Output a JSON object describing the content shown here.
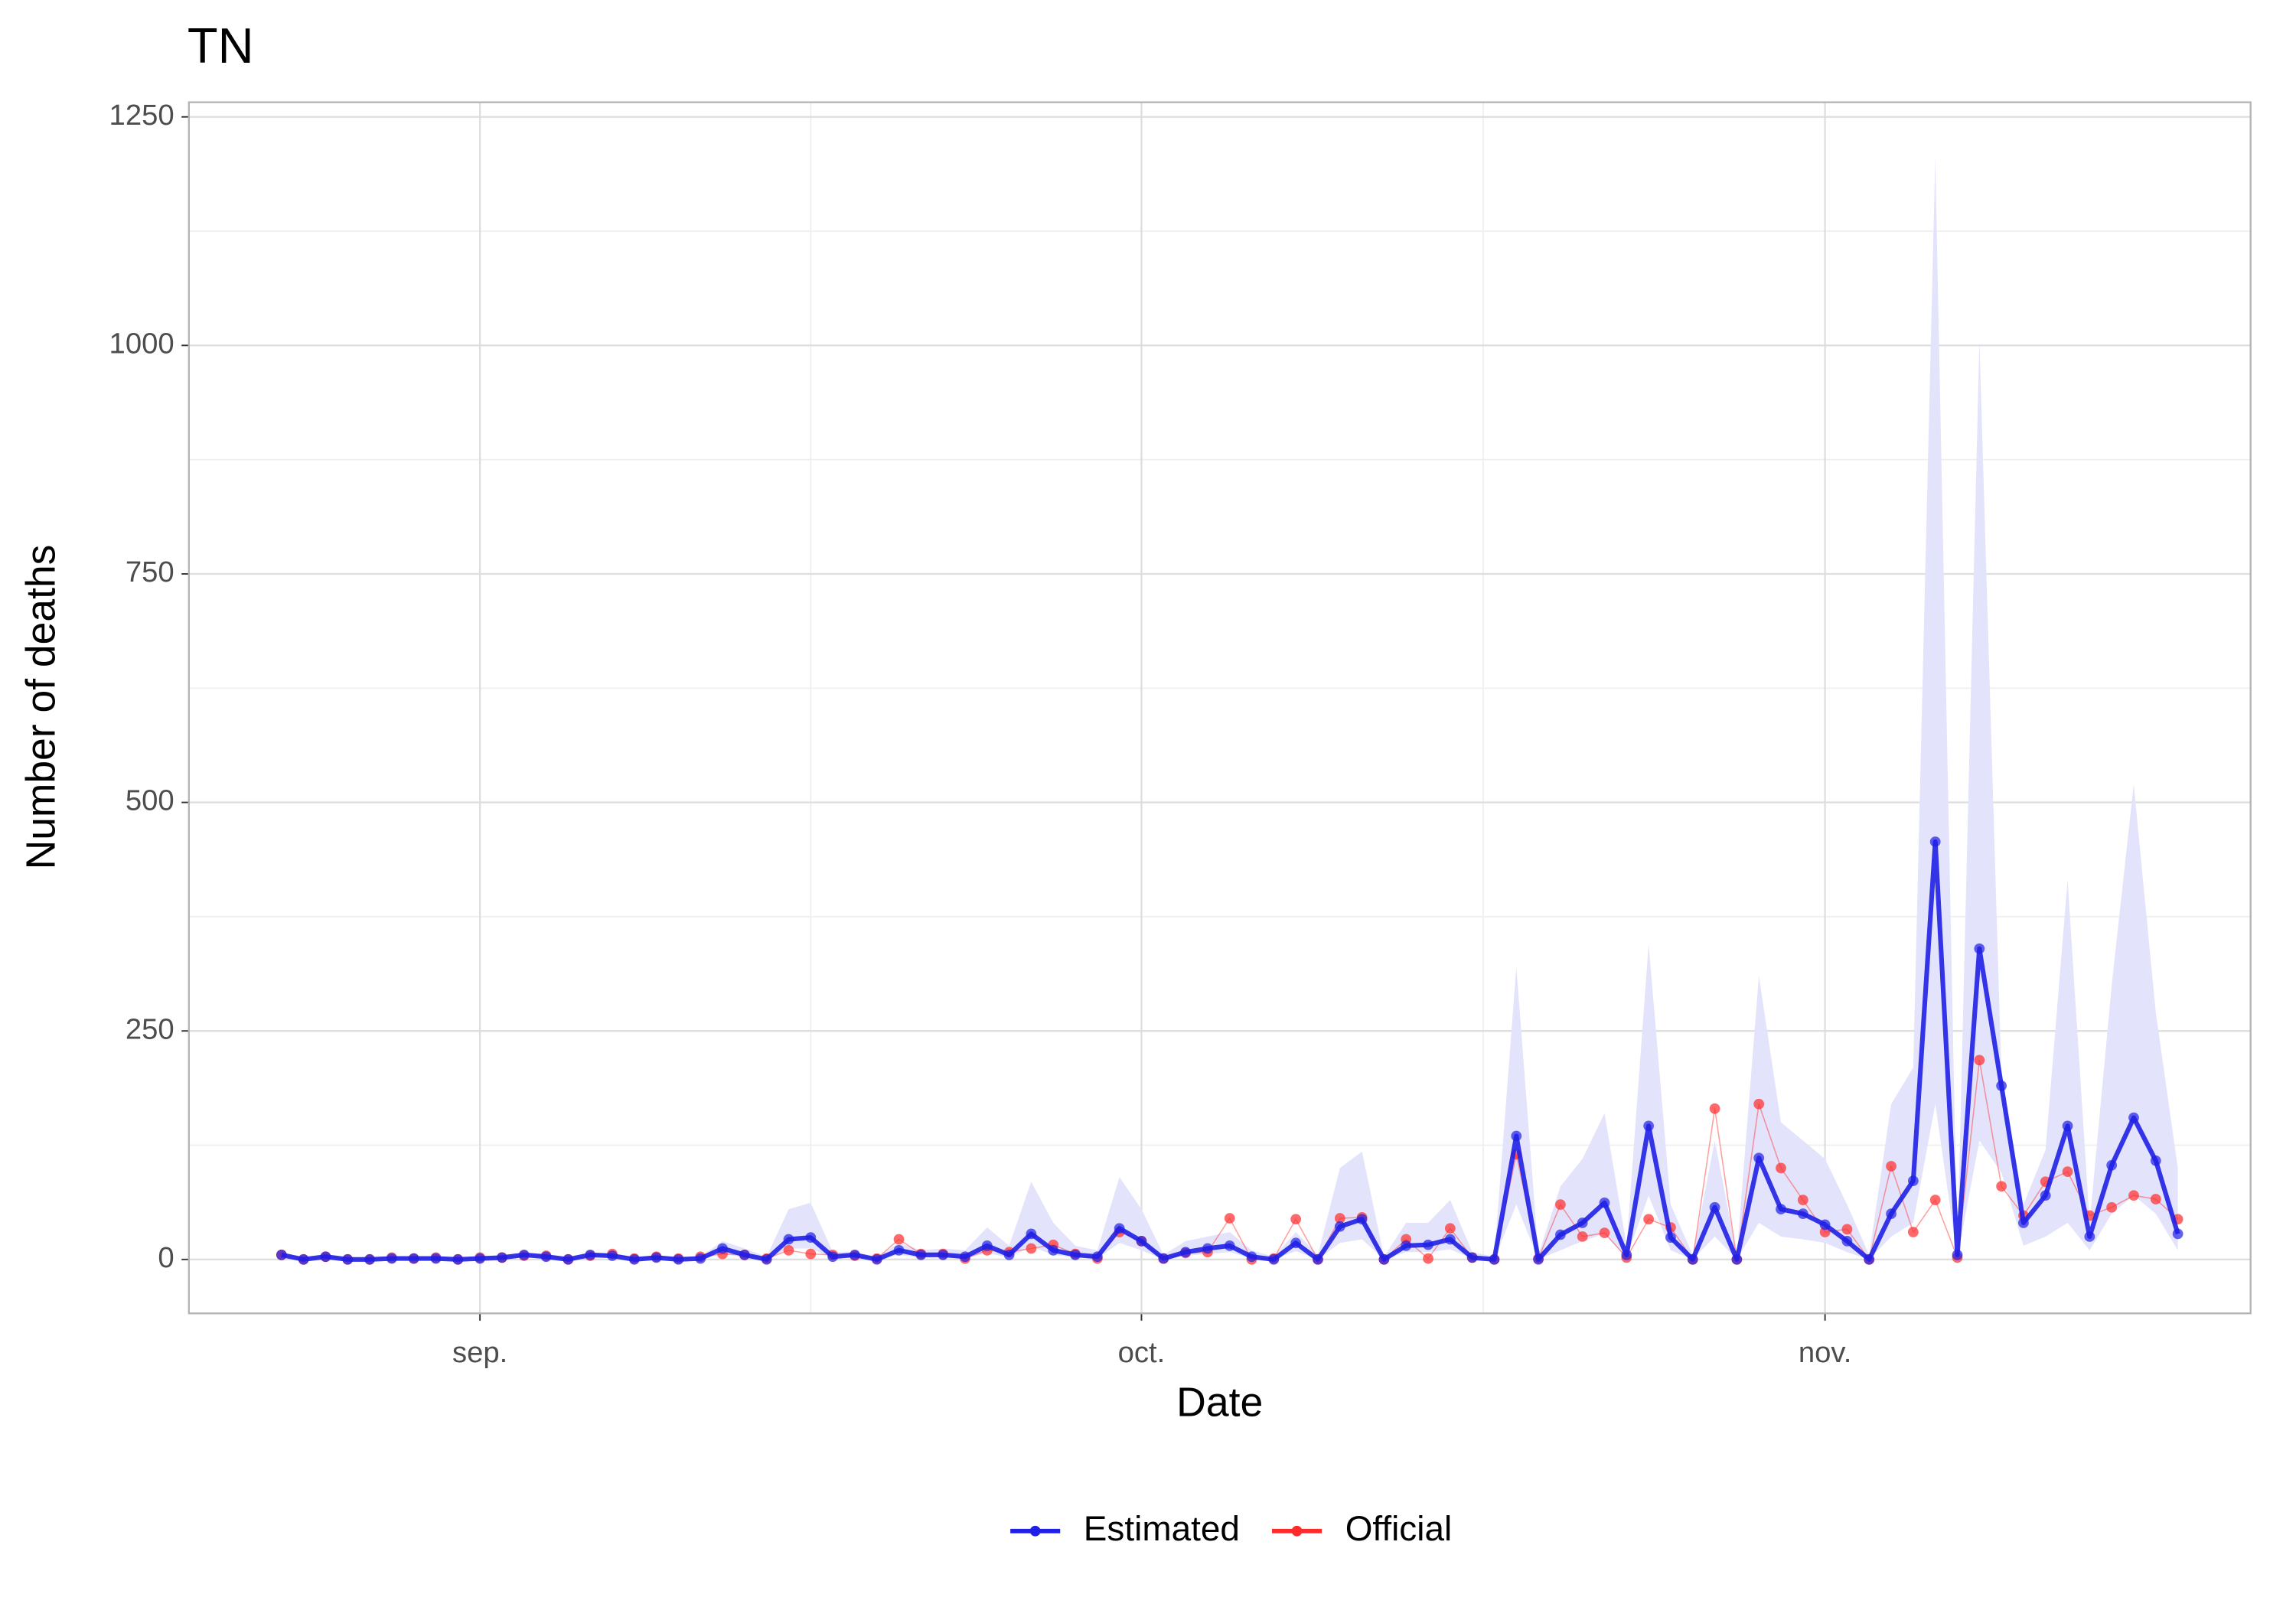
{
  "chart_data": {
    "type": "line",
    "title": "TN",
    "x_label": "Date",
    "y_label": "Number of deaths",
    "x": [
      -9,
      -8,
      -7,
      -6,
      -5,
      -4,
      -3,
      -2,
      -1,
      0,
      1,
      2,
      3,
      4,
      5,
      6,
      7,
      8,
      9,
      10,
      11,
      12,
      13,
      14,
      15,
      16,
      17,
      18,
      19,
      20,
      21,
      22,
      23,
      24,
      25,
      26,
      27,
      28,
      29,
      30,
      31,
      32,
      33,
      34,
      35,
      36,
      37,
      38,
      39,
      40,
      41,
      42,
      43,
      44,
      45,
      46,
      47,
      48,
      49,
      50,
      51,
      52,
      53,
      54,
      55,
      56,
      57,
      58,
      59,
      60,
      61,
      62,
      63,
      64,
      65,
      66,
      67,
      68,
      69,
      70,
      71,
      72,
      73,
      74,
      75,
      76,
      77
    ],
    "series": [
      {
        "name": "Estimated",
        "color": "#1f1fe6",
        "values": [
          5,
          0,
          3,
          0,
          0,
          1,
          1,
          1,
          0,
          1,
          2,
          5,
          3,
          0,
          5,
          4,
          0,
          2,
          0,
          1,
          12,
          5,
          0,
          22,
          24,
          3,
          5,
          0,
          10,
          5,
          5,
          3,
          15,
          5,
          28,
          10,
          5,
          3,
          34,
          20,
          1,
          8,
          12,
          15,
          3,
          0,
          18,
          0,
          36,
          44,
          0,
          15,
          16,
          22,
          2,
          0,
          135,
          0,
          27,
          40,
          62,
          5,
          146,
          24,
          0,
          57,
          0,
          111,
          55,
          50,
          38,
          20,
          0,
          50,
          86,
          457,
          5,
          340,
          190,
          40,
          70,
          146,
          25,
          103,
          155,
          108,
          28
        ]
      },
      {
        "name": "Official",
        "color": "#ff2a2a",
        "values": [
          5,
          0,
          3,
          0,
          0,
          2,
          1,
          2,
          0,
          2,
          2,
          4,
          4,
          0,
          4,
          6,
          1,
          3,
          1,
          3,
          6,
          5,
          1,
          10,
          6,
          5,
          4,
          1,
          22,
          6,
          6,
          1,
          10,
          8,
          12,
          16,
          6,
          1,
          30,
          20,
          1,
          7,
          8,
          45,
          0,
          1,
          44,
          0,
          45,
          46,
          0,
          22,
          1,
          34,
          2,
          0,
          115,
          1,
          60,
          25,
          29,
          2,
          44,
          35,
          0,
          165,
          0,
          170,
          100,
          65,
          30,
          33,
          0,
          102,
          30,
          65,
          2,
          218,
          80,
          48,
          85,
          96,
          48,
          57,
          70,
          66,
          44
        ]
      }
    ],
    "band": {
      "color": "#e3e3fb",
      "lower": [
        3,
        0,
        1,
        0,
        0,
        0,
        0,
        0,
        0,
        0,
        1,
        2,
        1,
        0,
        2,
        2,
        0,
        1,
        0,
        0,
        6,
        2,
        0,
        12,
        12,
        1,
        2,
        0,
        5,
        2,
        2,
        1,
        7,
        2,
        14,
        5,
        2,
        1,
        18,
        10,
        0,
        4,
        6,
        8,
        1,
        0,
        9,
        0,
        18,
        22,
        0,
        8,
        8,
        11,
        1,
        0,
        60,
        0,
        10,
        20,
        28,
        2,
        70,
        10,
        0,
        25,
        0,
        40,
        25,
        22,
        18,
        8,
        0,
        25,
        40,
        170,
        2,
        130,
        95,
        15,
        25,
        40,
        10,
        50,
        70,
        50,
        10
      ],
      "upper": [
        8,
        2,
        5,
        2,
        2,
        3,
        3,
        3,
        2,
        3,
        4,
        7,
        5,
        2,
        7,
        6,
        2,
        4,
        2,
        3,
        20,
        12,
        3,
        55,
        62,
        8,
        8,
        3,
        18,
        10,
        12,
        10,
        35,
        15,
        85,
        40,
        15,
        10,
        90,
        55,
        5,
        20,
        25,
        30,
        10,
        3,
        30,
        5,
        100,
        118,
        3,
        40,
        40,
        65,
        8,
        3,
        320,
        5,
        80,
        110,
        160,
        15,
        345,
        60,
        5,
        130,
        5,
        310,
        150,
        130,
        110,
        60,
        5,
        170,
        210,
        1205,
        10,
        1005,
        200,
        60,
        120,
        415,
        40,
        300,
        520,
        270,
        100
      ]
    },
    "xlim": [
      -13.2,
      80.3
    ],
    "xticks": [
      {
        "value": 0,
        "label": "sep."
      },
      {
        "value": 30,
        "label": "oct."
      },
      {
        "value": 61,
        "label": "nov."
      }
    ],
    "ylim": [
      -59,
      1266
    ],
    "yticks": [
      0,
      250,
      500,
      750,
      1000,
      1250
    ],
    "grid": true,
    "legend": "bottom"
  }
}
